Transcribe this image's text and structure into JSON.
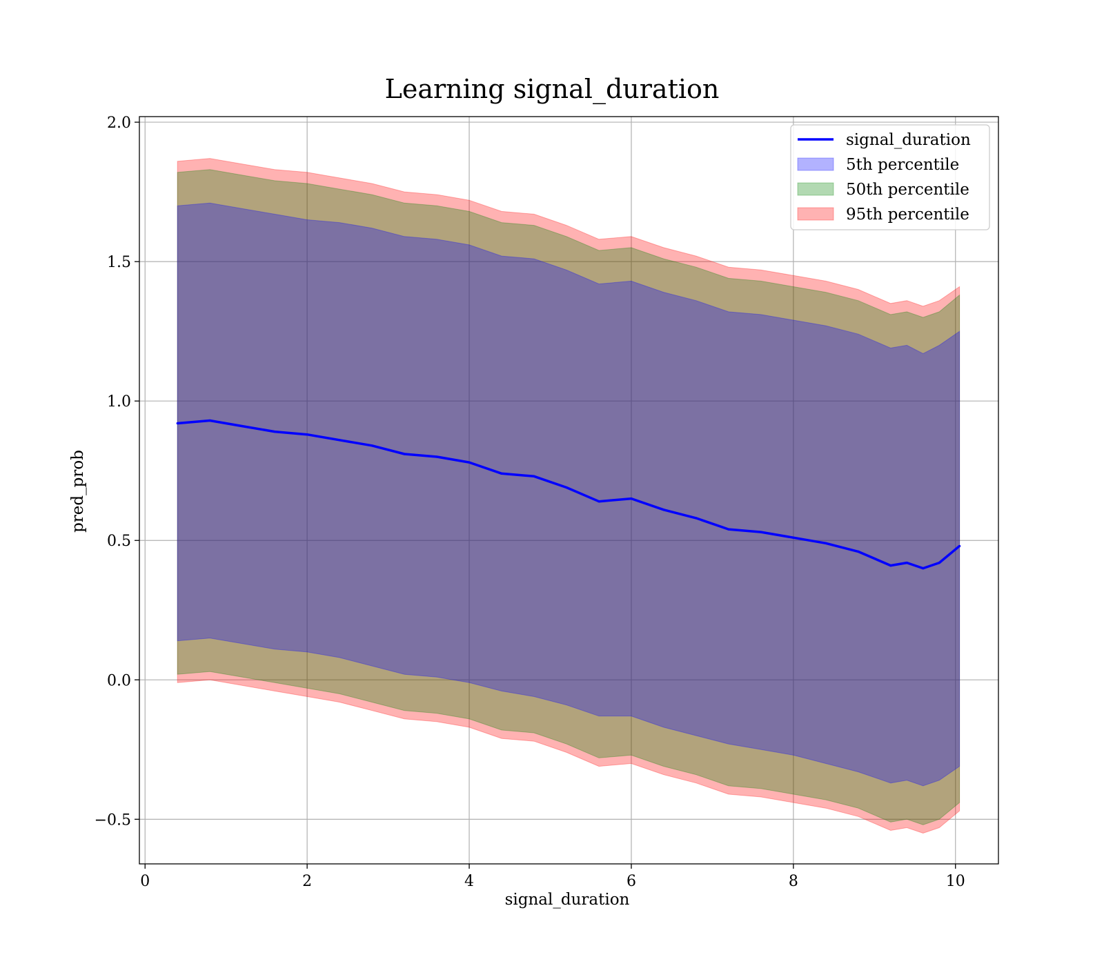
{
  "chart_data": {
    "type": "area",
    "title": "Learning signal_duration",
    "xlabel": "signal_duration",
    "ylabel": "pred_prob",
    "xlim": [
      -0.07,
      10.53
    ],
    "ylim": [
      -0.66,
      2.02
    ],
    "xticks": [
      0,
      2,
      4,
      6,
      8,
      10
    ],
    "xtick_labels": [
      "0",
      "2",
      "4",
      "6",
      "8",
      "10"
    ],
    "yticks": [
      -0.5,
      0.0,
      0.5,
      1.0,
      1.5,
      2.0
    ],
    "ytick_labels": [
      "−0.5",
      "0.0",
      "0.5",
      "1.0",
      "1.5",
      "2.0"
    ],
    "grid": true,
    "legend_position": "top-right",
    "x": [
      0.4,
      0.8,
      1.2,
      1.6,
      2.0,
      2.4,
      2.8,
      3.2,
      3.6,
      4.0,
      4.4,
      4.8,
      5.2,
      5.6,
      6.0,
      6.4,
      6.8,
      7.2,
      7.6,
      8.0,
      8.4,
      8.8,
      9.2,
      9.4,
      9.6,
      9.8,
      10.05
    ],
    "series": [
      {
        "name": "signal_duration",
        "kind": "line",
        "color": "#0000ff",
        "values": [
          0.92,
          0.93,
          0.91,
          0.89,
          0.88,
          0.86,
          0.84,
          0.81,
          0.8,
          0.78,
          0.74,
          0.73,
          0.69,
          0.64,
          0.65,
          0.61,
          0.58,
          0.54,
          0.53,
          0.51,
          0.49,
          0.46,
          0.41,
          0.42,
          0.4,
          0.42,
          0.48
        ]
      },
      {
        "name": "5th percentile",
        "kind": "band",
        "color": "#0000ff",
        "lower": [
          0.14,
          0.15,
          0.13,
          0.11,
          0.1,
          0.08,
          0.05,
          0.02,
          0.01,
          -0.01,
          -0.04,
          -0.06,
          -0.09,
          -0.13,
          -0.13,
          -0.17,
          -0.2,
          -0.23,
          -0.25,
          -0.27,
          -0.3,
          -0.33,
          -0.37,
          -0.36,
          -0.38,
          -0.36,
          -0.31
        ],
        "upper": [
          1.7,
          1.71,
          1.69,
          1.67,
          1.65,
          1.64,
          1.62,
          1.59,
          1.58,
          1.56,
          1.52,
          1.51,
          1.47,
          1.42,
          1.43,
          1.39,
          1.36,
          1.32,
          1.31,
          1.29,
          1.27,
          1.24,
          1.19,
          1.2,
          1.17,
          1.2,
          1.25
        ]
      },
      {
        "name": "50th percentile",
        "kind": "band",
        "color": "#008000",
        "lower": [
          0.02,
          0.03,
          0.01,
          -0.01,
          -0.03,
          -0.05,
          -0.08,
          -0.11,
          -0.12,
          -0.14,
          -0.18,
          -0.19,
          -0.23,
          -0.28,
          -0.27,
          -0.31,
          -0.34,
          -0.38,
          -0.39,
          -0.41,
          -0.43,
          -0.46,
          -0.51,
          -0.5,
          -0.52,
          -0.5,
          -0.44
        ],
        "upper": [
          1.82,
          1.83,
          1.81,
          1.79,
          1.78,
          1.76,
          1.74,
          1.71,
          1.7,
          1.68,
          1.64,
          1.63,
          1.59,
          1.54,
          1.55,
          1.51,
          1.48,
          1.44,
          1.43,
          1.41,
          1.39,
          1.36,
          1.31,
          1.32,
          1.3,
          1.32,
          1.38
        ]
      },
      {
        "name": "95th percentile",
        "kind": "band",
        "color": "#ff0000",
        "lower": [
          -0.01,
          0.0,
          -0.02,
          -0.04,
          -0.06,
          -0.08,
          -0.11,
          -0.14,
          -0.15,
          -0.17,
          -0.21,
          -0.22,
          -0.26,
          -0.31,
          -0.3,
          -0.34,
          -0.37,
          -0.41,
          -0.42,
          -0.44,
          -0.46,
          -0.49,
          -0.54,
          -0.53,
          -0.55,
          -0.53,
          -0.47
        ],
        "upper": [
          1.86,
          1.87,
          1.85,
          1.83,
          1.82,
          1.8,
          1.78,
          1.75,
          1.74,
          1.72,
          1.68,
          1.67,
          1.63,
          1.58,
          1.59,
          1.55,
          1.52,
          1.48,
          1.47,
          1.45,
          1.43,
          1.4,
          1.35,
          1.36,
          1.34,
          1.36,
          1.41
        ]
      }
    ]
  }
}
